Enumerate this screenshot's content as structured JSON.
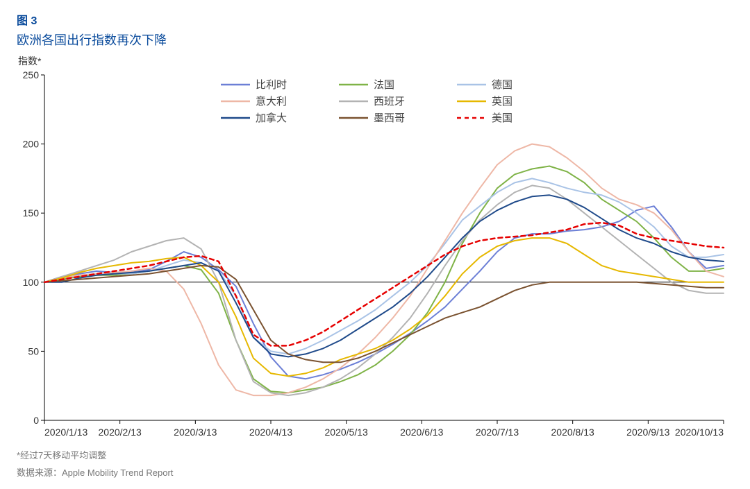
{
  "header": {
    "figure_number": "图 3",
    "title": "欧洲各国出行指数再次下降",
    "ylabel": "指数*",
    "footnote1": "*经过7天移动平均调整",
    "footnote2": "数据来源：Apple Mobility Trend Report"
  },
  "chart": {
    "type": "line",
    "background_color": "#ffffff",
    "axis_color": "#000000",
    "title_color": "#0a4b9c",
    "tick_fontsize": 14,
    "legend_fontsize": 15,
    "ylim": [
      0,
      250
    ],
    "ytick_step": 50,
    "x_labels": [
      "2020/1/13",
      "2020/2/13",
      "2020/3/13",
      "2020/4/13",
      "2020/5/13",
      "2020/6/13",
      "2020/7/13",
      "2020/8/13",
      "2020/9/13",
      "2020/10/13"
    ],
    "baseline_y": 100,
    "legend": {
      "columns": 3,
      "items": [
        {
          "label": "比利时",
          "color": "#6c7fd6",
          "dash": ""
        },
        {
          "label": "法国",
          "color": "#7fb347",
          "dash": ""
        },
        {
          "label": "德国",
          "color": "#a9c3e6",
          "dash": ""
        },
        {
          "label": "意大利",
          "color": "#eeb7a6",
          "dash": ""
        },
        {
          "label": "西班牙",
          "color": "#b3b3b3",
          "dash": ""
        },
        {
          "label": "英国",
          "color": "#e6b800",
          "dash": ""
        },
        {
          "label": "加拿大",
          "color": "#1f4a8a",
          "dash": ""
        },
        {
          "label": "墨西哥",
          "color": "#7a5230",
          "dash": ""
        },
        {
          "label": "美国",
          "color": "#e60000",
          "dash": "6,5"
        }
      ]
    },
    "series": [
      {
        "name": "比利时",
        "color": "#6c7fd6",
        "dash": "",
        "width": 2,
        "y": [
          100,
          104,
          106,
          108,
          107,
          108,
          109,
          115,
          122,
          118,
          109,
          97,
          70,
          46,
          32,
          30,
          33,
          37,
          42,
          48,
          55,
          63,
          72,
          82,
          95,
          108,
          122,
          132,
          135,
          135,
          137,
          138,
          140,
          144,
          152,
          155,
          140,
          122,
          110,
          112
        ]
      },
      {
        "name": "法国",
        "color": "#7fb347",
        "dash": "",
        "width": 2,
        "y": [
          100,
          102,
          104,
          105,
          105,
          106,
          108,
          110,
          112,
          109,
          92,
          58,
          30,
          21,
          20,
          22,
          24,
          28,
          33,
          40,
          50,
          62,
          78,
          100,
          128,
          150,
          168,
          178,
          182,
          184,
          180,
          172,
          160,
          152,
          144,
          132,
          118,
          108,
          108,
          110
        ]
      },
      {
        "name": "德国",
        "color": "#a9c3e6",
        "dash": "",
        "width": 2,
        "y": [
          100,
          103,
          105,
          106,
          106,
          106,
          108,
          112,
          116,
          114,
          108,
          90,
          60,
          50,
          48,
          52,
          58,
          65,
          72,
          80,
          90,
          100,
          112,
          128,
          145,
          155,
          165,
          172,
          175,
          172,
          168,
          165,
          163,
          158,
          150,
          140,
          126,
          118,
          118,
          120
        ]
      },
      {
        "name": "意大利",
        "color": "#eeb7a6",
        "dash": "",
        "width": 2,
        "y": [
          100,
          103,
          105,
          106,
          107,
          108,
          110,
          108,
          95,
          70,
          40,
          22,
          18,
          18,
          20,
          24,
          30,
          38,
          48,
          60,
          74,
          90,
          110,
          130,
          150,
          168,
          185,
          195,
          200,
          198,
          190,
          180,
          168,
          160,
          156,
          150,
          138,
          122,
          108,
          104
        ]
      },
      {
        "name": "西班牙",
        "color": "#b3b3b3",
        "dash": "",
        "width": 2,
        "y": [
          100,
          104,
          108,
          112,
          116,
          122,
          126,
          130,
          132,
          124,
          100,
          58,
          28,
          20,
          18,
          20,
          24,
          30,
          38,
          48,
          60,
          74,
          92,
          112,
          130,
          145,
          156,
          165,
          170,
          168,
          160,
          150,
          140,
          130,
          120,
          110,
          100,
          94,
          92,
          92
        ]
      },
      {
        "name": "英国",
        "color": "#e6b800",
        "dash": "",
        "width": 2,
        "y": [
          100,
          103,
          107,
          110,
          112,
          114,
          115,
          117,
          118,
          112,
          100,
          75,
          45,
          34,
          32,
          34,
          38,
          44,
          48,
          52,
          58,
          66,
          76,
          90,
          106,
          118,
          126,
          130,
          132,
          132,
          128,
          120,
          112,
          108,
          106,
          104,
          102,
          100,
          100,
          100
        ]
      },
      {
        "name": "加拿大",
        "color": "#1f4a8a",
        "dash": "",
        "width": 2,
        "y": [
          100,
          100,
          103,
          105,
          106,
          107,
          108,
          110,
          112,
          114,
          108,
          85,
          60,
          48,
          46,
          48,
          52,
          58,
          66,
          74,
          82,
          92,
          104,
          118,
          132,
          144,
          152,
          158,
          162,
          163,
          160,
          154,
          146,
          138,
          132,
          128,
          122,
          118,
          116,
          115
        ]
      },
      {
        "name": "墨西哥",
        "color": "#7a5230",
        "dash": "",
        "width": 2,
        "y": [
          100,
          101,
          102,
          103,
          104,
          105,
          106,
          108,
          110,
          112,
          111,
          102,
          80,
          58,
          48,
          44,
          42,
          42,
          45,
          50,
          56,
          62,
          68,
          74,
          78,
          82,
          88,
          94,
          98,
          100,
          100,
          100,
          100,
          100,
          100,
          99,
          98,
          97,
          96,
          96
        ]
      },
      {
        "name": "美国",
        "color": "#e60000",
        "dash": "6,5",
        "width": 2.5,
        "y": [
          100,
          102,
          104,
          106,
          108,
          110,
          112,
          115,
          118,
          119,
          115,
          90,
          62,
          54,
          54,
          58,
          64,
          72,
          80,
          88,
          96,
          104,
          112,
          120,
          126,
          130,
          132,
          133,
          134,
          136,
          138,
          142,
          143,
          141,
          135,
          132,
          130,
          128,
          126,
          125
        ]
      }
    ]
  }
}
